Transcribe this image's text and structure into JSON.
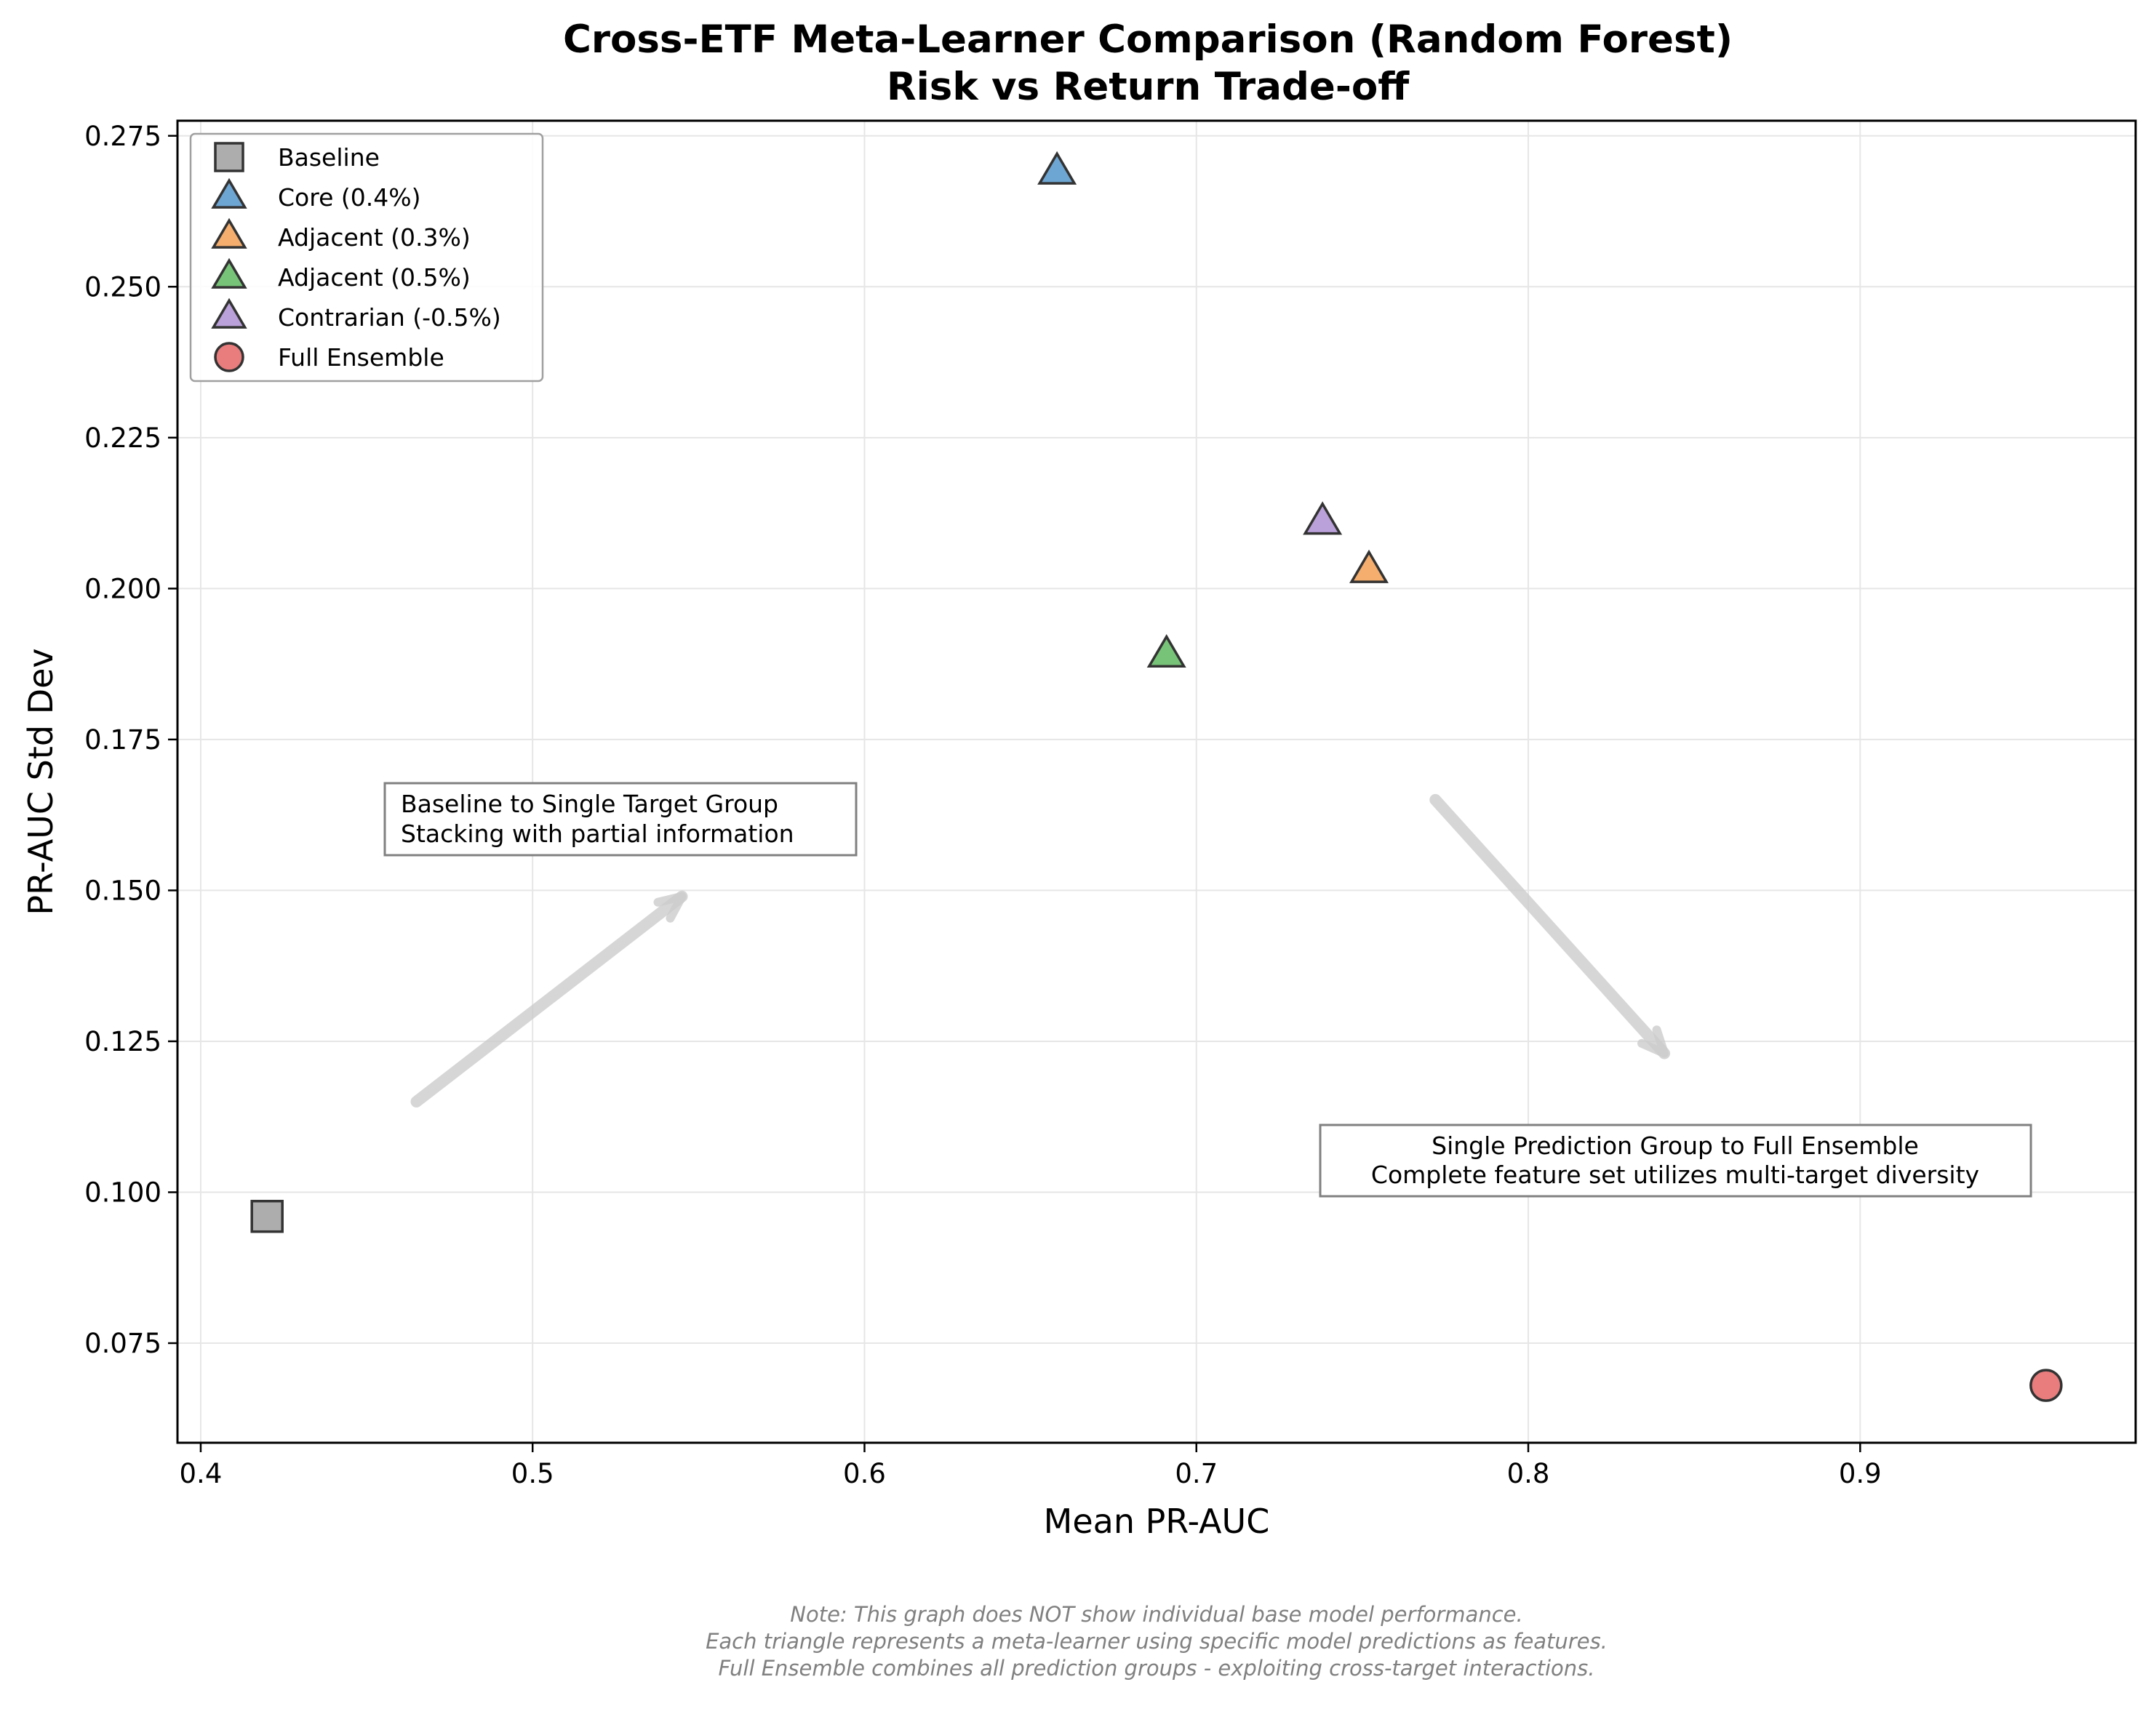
{
  "chart_data": {
    "type": "scatter",
    "title": [
      "Cross-ETF Meta-Learner Comparison (Random Forest)",
      "Risk vs Return Trade-off"
    ],
    "xlabel": "Mean PR-AUC",
    "ylabel": "PR-AUC Std Dev",
    "xlim": [
      0.393,
      0.983
    ],
    "ylim": [
      0.0585,
      0.2775
    ],
    "grid": true,
    "legend_position": "top-left",
    "xticks": [
      0.4,
      0.5,
      0.6,
      0.7,
      0.8,
      0.9
    ],
    "xtick_labels": [
      "0.4",
      "0.5",
      "0.6",
      "0.7",
      "0.8",
      "0.9"
    ],
    "yticks": [
      0.075,
      0.1,
      0.125,
      0.15,
      0.175,
      0.2,
      0.225,
      0.25,
      0.275
    ],
    "ytick_labels": [
      "0.075",
      "0.100",
      "0.125",
      "0.150",
      "0.175",
      "0.200",
      "0.225",
      "0.250",
      "0.275"
    ],
    "series": [
      {
        "name": "Baseline",
        "marker": "square",
        "color": "#999999",
        "x": 0.42,
        "y": 0.096
      },
      {
        "name": "Core (0.4%)",
        "marker": "triangle",
        "color": "#4a90c8",
        "x": 0.658,
        "y": 0.269
      },
      {
        "name": "Adjacent (0.3%)",
        "marker": "triangle",
        "color": "#f39a48",
        "x": 0.752,
        "y": 0.203
      },
      {
        "name": "Adjacent (0.5%)",
        "marker": "triangle",
        "color": "#55b556",
        "x": 0.691,
        "y": 0.189
      },
      {
        "name": "Contrarian (-0.5%)",
        "marker": "triangle",
        "color": "#a98ad0",
        "x": 0.738,
        "y": 0.211
      },
      {
        "name": "Full Ensemble",
        "marker": "circle",
        "color": "#e45b5b",
        "x": 0.956,
        "y": 0.068
      }
    ],
    "annotations": [
      {
        "lines": [
          "Baseline to Single Target Group",
          "Stacking with partial information"
        ],
        "arrow_from": [
          0.465,
          0.115
        ],
        "arrow_to": [
          0.545,
          0.149
        ]
      },
      {
        "lines": [
          "Single Prediction Group to Full Ensemble",
          "Complete feature set utilizes multi-target diversity"
        ],
        "arrow_from": [
          0.772,
          0.165
        ],
        "arrow_to": [
          0.841,
          0.123
        ]
      }
    ],
    "footnote": [
      "Note: This graph does NOT show individual base model performance.",
      "Each triangle represents a meta-learner using specific model predictions as features.",
      "Full Ensemble combines all prediction groups - exploiting cross-target interactions."
    ]
  }
}
